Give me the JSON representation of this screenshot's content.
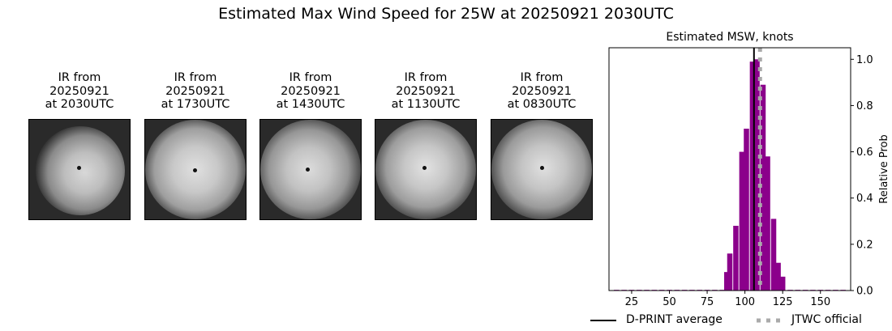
{
  "title": "Estimated Max Wind Speed for 25W at 20250921 2030UTC",
  "panels": [
    {
      "line1": "IR from",
      "line2": "20250921",
      "line3": "at 2030UTC"
    },
    {
      "line1": "IR from",
      "line2": "20250921",
      "line3": "at 1730UTC"
    },
    {
      "line1": "IR from",
      "line2": "20250921",
      "line3": "at 1430UTC"
    },
    {
      "line1": "IR from",
      "line2": "20250921",
      "line3": "at 1130UTC"
    },
    {
      "line1": "IR from",
      "line2": "20250921",
      "line3": "at 0830UTC"
    }
  ],
  "chart_data": {
    "type": "bar",
    "title": "Estimated MSW, knots",
    "ylabel": "Relative Prob",
    "xlim": [
      10,
      170
    ],
    "ylim": [
      0,
      1.05
    ],
    "xticks": [
      25,
      50,
      75,
      100,
      125,
      150
    ],
    "yticks": [
      0.0,
      0.2,
      0.4,
      0.6,
      0.8,
      1.0
    ],
    "y_axis_position": "right",
    "bar_width": 3.5,
    "bar_color": "#8b008b",
    "x": [
      15,
      20,
      25,
      30,
      35,
      40,
      45,
      50,
      55,
      60,
      65,
      70,
      75,
      80,
      85,
      88,
      90,
      94,
      98,
      101,
      105,
      108,
      112,
      115,
      119,
      122,
      125,
      130,
      135,
      140,
      145,
      150,
      155,
      160,
      165
    ],
    "values": [
      0.003,
      0.003,
      0.003,
      0.003,
      0.003,
      0.003,
      0.003,
      0.003,
      0.003,
      0.003,
      0.003,
      0.003,
      0.003,
      0.003,
      0.003,
      0.08,
      0.16,
      0.28,
      0.6,
      0.7,
      0.99,
      1.0,
      0.89,
      0.58,
      0.31,
      0.12,
      0.06,
      0.003,
      0.003,
      0.003,
      0.003,
      0.003,
      0.003,
      0.003,
      0.003
    ],
    "dprint_average": 106,
    "jtwc_official": 110,
    "legend": [
      {
        "label": "D-PRINT average",
        "color": "#000000",
        "style": "solid"
      },
      {
        "label": "JTWC official",
        "color": "#aaaaaa",
        "style": "dotted"
      }
    ],
    "legend_position": "bottom"
  }
}
